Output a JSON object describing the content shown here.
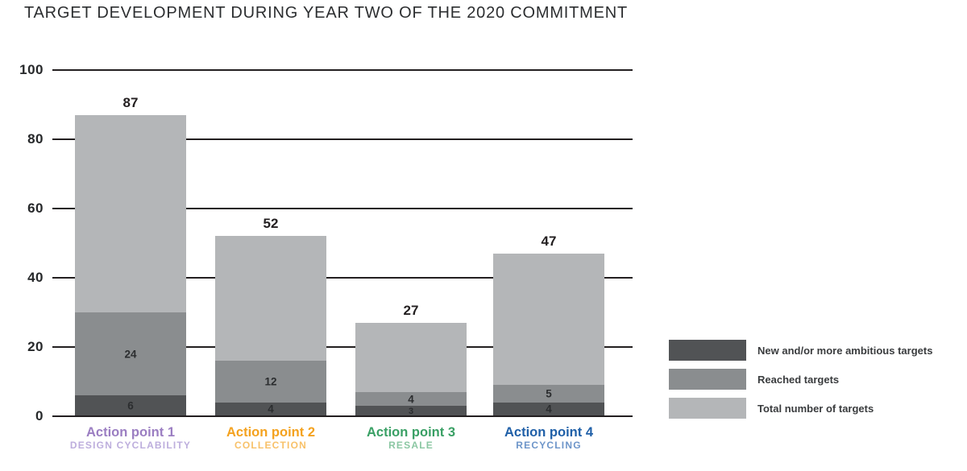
{
  "chart_data": {
    "type": "stacked-bar",
    "title": "TARGET DEVELOPMENT DURING YEAR TWO OF THE 2020 COMMITMENT",
    "xlabel": "",
    "ylabel": "",
    "ylim": [
      0,
      100
    ],
    "yticks": [
      0,
      20,
      40,
      60,
      80,
      100
    ],
    "grid": "horizontal",
    "legend_position": "right",
    "axis_color": "#231f20",
    "categories": [
      {
        "label": "Action point 1",
        "sublabel": "DESIGN CYCLABILITY",
        "label_color": "#9b7ec2",
        "sublabel_color": "#bdaedd"
      },
      {
        "label": "Action point 2",
        "sublabel": "COLLECTION",
        "label_color": "#f4a21f",
        "sublabel_color": "#f8c169"
      },
      {
        "label": "Action point 3",
        "sublabel": "RESALE",
        "label_color": "#3aa065",
        "sublabel_color": "#8bc7a3"
      },
      {
        "label": "Action point 4",
        "sublabel": "RECYCLING",
        "label_color": "#2060a8",
        "sublabel_color": "#6d95c9"
      }
    ],
    "series": [
      {
        "name": "New and/or more ambitious targets",
        "color": "#515355",
        "values": [
          6,
          4,
          3,
          4
        ]
      },
      {
        "name": "Reached targets",
        "color": "#8a8d8f",
        "values": [
          24,
          12,
          4,
          5
        ]
      },
      {
        "name": "Total number of targets",
        "color": "#b4b6b8",
        "values": [
          87,
          52,
          27,
          47
        ]
      }
    ]
  }
}
